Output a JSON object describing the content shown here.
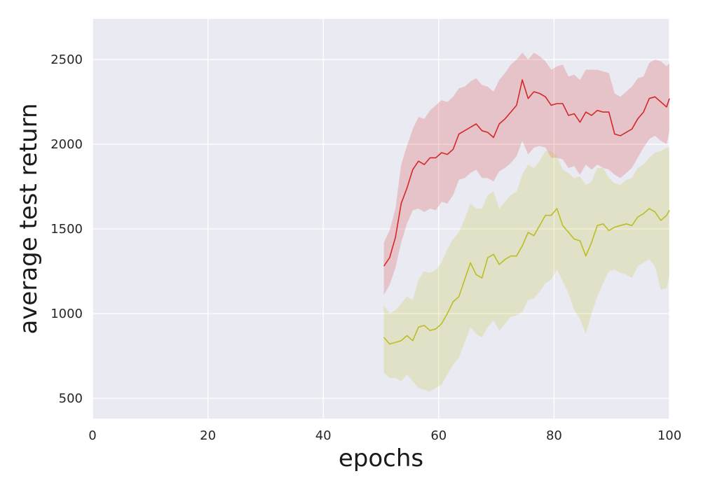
{
  "chart_data": {
    "type": "line",
    "xlabel": "epochs",
    "ylabel": "average test return",
    "xlim": [
      0,
      100
    ],
    "ylim": [
      380,
      2740
    ],
    "xticks": [
      0,
      20,
      40,
      60,
      80,
      100
    ],
    "yticks": [
      500,
      1000,
      1500,
      2000,
      2500
    ],
    "grid": true,
    "background": "#eaeaf2",
    "series": [
      {
        "color": "#d62728",
        "x": [
          50.5,
          51.5,
          52.5,
          53.5,
          54.5,
          55.5,
          56.5,
          57.5,
          58.5,
          59.5,
          60.5,
          61.5,
          62.5,
          63.5,
          64.5,
          65.5,
          66.5,
          67.5,
          68.5,
          69.5,
          70.5,
          71.5,
          72.5,
          73.5,
          74.5,
          75.5,
          76.5,
          77.5,
          78.5,
          79.5,
          80.5,
          81.5,
          82.5,
          83.5,
          84.5,
          85.5,
          86.5,
          87.5,
          88.5,
          89.5,
          90.5,
          91.5,
          92.5,
          93.5,
          94.5,
          95.5,
          96.5,
          97.5,
          98.5,
          99.5,
          100
        ],
        "y": [
          1280,
          1330,
          1450,
          1650,
          1740,
          1850,
          1900,
          1880,
          1920,
          1920,
          1950,
          1940,
          1970,
          2060,
          2080,
          2100,
          2120,
          2080,
          2070,
          2040,
          2120,
          2150,
          2190,
          2230,
          2380,
          2270,
          2310,
          2300,
          2280,
          2230,
          2240,
          2240,
          2170,
          2180,
          2130,
          2190,
          2170,
          2200,
          2190,
          2190,
          2060,
          2050,
          2070,
          2090,
          2150,
          2190,
          2270,
          2280,
          2250,
          2220,
          2270
        ],
        "lower": [
          1110,
          1170,
          1270,
          1420,
          1530,
          1610,
          1620,
          1600,
          1620,
          1610,
          1660,
          1650,
          1700,
          1790,
          1800,
          1830,
          1850,
          1800,
          1800,
          1780,
          1840,
          1860,
          1890,
          1930,
          2020,
          1940,
          1980,
          1990,
          1980,
          1920,
          1920,
          1910,
          1860,
          1870,
          1820,
          1880,
          1850,
          1880,
          1860,
          1850,
          1820,
          1800,
          1830,
          1860,
          1920,
          1980,
          2030,
          2050,
          2020,
          2000,
          2080
        ],
        "upper": [
          1420,
          1490,
          1620,
          1880,
          1990,
          2090,
          2160,
          2150,
          2200,
          2230,
          2260,
          2250,
          2280,
          2330,
          2340,
          2370,
          2390,
          2350,
          2340,
          2310,
          2380,
          2420,
          2470,
          2500,
          2540,
          2500,
          2540,
          2520,
          2490,
          2440,
          2460,
          2470,
          2400,
          2410,
          2380,
          2440,
          2440,
          2440,
          2430,
          2420,
          2300,
          2280,
          2310,
          2340,
          2390,
          2400,
          2480,
          2500,
          2490,
          2460,
          2480
        ]
      },
      {
        "color": "#bcbd22",
        "x": [
          50.5,
          51.5,
          52.5,
          53.5,
          54.5,
          55.5,
          56.5,
          57.5,
          58.5,
          59.5,
          60.5,
          61.5,
          62.5,
          63.5,
          64.5,
          65.5,
          66.5,
          67.5,
          68.5,
          69.5,
          70.5,
          71.5,
          72.5,
          73.5,
          74.5,
          75.5,
          76.5,
          77.5,
          78.5,
          79.5,
          80.5,
          81.5,
          82.5,
          83.5,
          84.5,
          85.5,
          86.5,
          87.5,
          88.5,
          89.5,
          90.5,
          91.5,
          92.5,
          93.5,
          94.5,
          95.5,
          96.5,
          97.5,
          98.5,
          99.5,
          100
        ],
        "y": [
          860,
          820,
          830,
          840,
          870,
          840,
          920,
          930,
          900,
          910,
          940,
          1000,
          1070,
          1100,
          1200,
          1300,
          1230,
          1210,
          1330,
          1350,
          1290,
          1320,
          1340,
          1340,
          1400,
          1480,
          1460,
          1520,
          1580,
          1580,
          1620,
          1520,
          1480,
          1440,
          1430,
          1340,
          1420,
          1520,
          1530,
          1490,
          1510,
          1520,
          1530,
          1520,
          1570,
          1590,
          1620,
          1600,
          1550,
          1580,
          1610
        ],
        "lower": [
          650,
          620,
          620,
          600,
          640,
          600,
          560,
          550,
          540,
          560,
          580,
          640,
          700,
          740,
          830,
          920,
          880,
          860,
          920,
          960,
          900,
          940,
          980,
          990,
          1010,
          1080,
          1090,
          1130,
          1180,
          1200,
          1260,
          1190,
          1120,
          1020,
          970,
          880,
          1000,
          1100,
          1180,
          1250,
          1260,
          1240,
          1230,
          1210,
          1280,
          1300,
          1320,
          1280,
          1140,
          1150,
          1230
        ],
        "upper": [
          1050,
          1000,
          1020,
          1060,
          1100,
          1080,
          1200,
          1250,
          1240,
          1260,
          1300,
          1380,
          1440,
          1480,
          1560,
          1650,
          1620,
          1620,
          1700,
          1720,
          1620,
          1660,
          1700,
          1720,
          1820,
          1880,
          1860,
          1900,
          1960,
          1960,
          1930,
          1850,
          1830,
          1800,
          1810,
          1760,
          1780,
          1860,
          1860,
          1800,
          1770,
          1760,
          1790,
          1800,
          1860,
          1880,
          1920,
          1950,
          1960,
          1980,
          1980
        ]
      }
    ]
  }
}
